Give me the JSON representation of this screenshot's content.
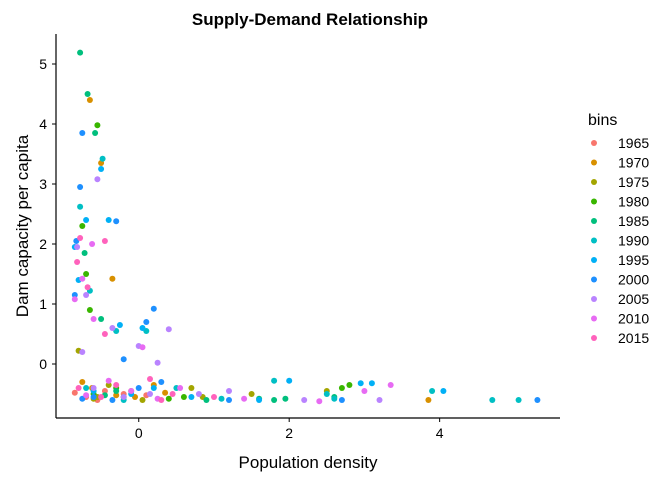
{
  "chart_data": {
    "type": "scatter",
    "title": "Supply-Demand Relationship",
    "xlabel": "Population density",
    "ylabel": "Dam capacity per capita",
    "xlim": [
      -1.1,
      5.6
    ],
    "ylim": [
      -0.9,
      5.5
    ],
    "xticks": [
      0,
      2,
      4
    ],
    "yticks": [
      0,
      1,
      2,
      3,
      4,
      5
    ],
    "grid": false,
    "legend": {
      "title": "bins",
      "position": "right",
      "entries": [
        {
          "label": "1965",
          "color": "#F8766D"
        },
        {
          "label": "1970",
          "color": "#D89000"
        },
        {
          "label": "1975",
          "color": "#A3A500"
        },
        {
          "label": "1980",
          "color": "#39B600"
        },
        {
          "label": "1985",
          "color": "#00BF7D"
        },
        {
          "label": "1990",
          "color": "#00BFC4"
        },
        {
          "label": "1995",
          "color": "#00B0F6"
        },
        {
          "label": "2000",
          "color": "#1E90FF"
        },
        {
          "label": "2005",
          "color": "#B983FF"
        },
        {
          "label": "2010",
          "color": "#E76BF3"
        },
        {
          "label": "2015",
          "color": "#FF62BC"
        }
      ]
    },
    "series": [
      {
        "color": "#F8766D",
        "points": [
          [
            -0.7,
            -0.55
          ],
          [
            -0.45,
            -0.45
          ],
          [
            -0.2,
            -0.5
          ],
          [
            0.1,
            -0.52
          ],
          [
            -0.55,
            -0.6
          ],
          [
            -0.85,
            -0.48
          ]
        ]
      },
      {
        "color": "#D89000",
        "points": [
          [
            -0.65,
            4.4
          ],
          [
            -0.5,
            3.35
          ],
          [
            -0.35,
            1.42
          ],
          [
            -0.62,
            -0.4
          ],
          [
            -0.3,
            -0.52
          ],
          [
            0.2,
            -0.35
          ],
          [
            -0.05,
            -0.55
          ],
          [
            0.35,
            -0.48
          ],
          [
            3.85,
            -0.6
          ],
          [
            -0.75,
            -0.3
          ]
        ]
      },
      {
        "color": "#A3A500",
        "points": [
          [
            -0.8,
            0.22
          ],
          [
            -0.55,
            -0.55
          ],
          [
            -0.1,
            -0.45
          ],
          [
            0.7,
            -0.4
          ],
          [
            1.5,
            -0.5
          ],
          [
            -0.4,
            -0.35
          ],
          [
            0.05,
            -0.6
          ],
          [
            0.85,
            -0.55
          ],
          [
            2.5,
            -0.45
          ],
          [
            -0.6,
            -0.58
          ]
        ]
      },
      {
        "color": "#39B600",
        "points": [
          [
            -0.55,
            3.98
          ],
          [
            -0.75,
            2.3
          ],
          [
            -0.7,
            1.5
          ],
          [
            -0.6,
            -0.5
          ],
          [
            -0.2,
            -0.55
          ],
          [
            0.6,
            -0.55
          ],
          [
            2.7,
            -0.4
          ],
          [
            2.8,
            -0.35
          ],
          [
            -0.3,
            -0.4
          ],
          [
            0.4,
            -0.58
          ],
          [
            -0.65,
            0.9
          ]
        ]
      },
      {
        "color": "#00BF7D",
        "points": [
          [
            -0.78,
            5.19
          ],
          [
            -0.68,
            4.5
          ],
          [
            -0.58,
            3.85
          ],
          [
            -0.72,
            1.85
          ],
          [
            -0.5,
            0.75
          ],
          [
            -0.3,
            -0.45
          ],
          [
            1.6,
            -0.58
          ],
          [
            1.8,
            -0.6
          ],
          [
            1.95,
            -0.58
          ],
          [
            2.6,
            -0.55
          ],
          [
            -0.45,
            -0.52
          ],
          [
            0.9,
            -0.6
          ]
        ]
      },
      {
        "color": "#00BFC4",
        "points": [
          [
            -0.48,
            3.42
          ],
          [
            -0.78,
            2.62
          ],
          [
            -0.65,
            1.22
          ],
          [
            -0.3,
            0.55
          ],
          [
            0.1,
            0.55
          ],
          [
            -0.7,
            -0.4
          ],
          [
            1.8,
            -0.28
          ],
          [
            2.5,
            -0.5
          ],
          [
            2.6,
            -0.58
          ],
          [
            4.7,
            -0.6
          ],
          [
            5.05,
            -0.6
          ],
          [
            3.9,
            -0.45
          ],
          [
            -0.2,
            -0.6
          ],
          [
            0.5,
            -0.4
          ],
          [
            1.1,
            -0.58
          ]
        ]
      },
      {
        "color": "#00B0F6",
        "points": [
          [
            -0.5,
            3.25
          ],
          [
            -0.7,
            2.4
          ],
          [
            -0.85,
            1.95
          ],
          [
            -0.8,
            1.4
          ],
          [
            -0.4,
            2.4
          ],
          [
            -0.25,
            0.65
          ],
          [
            0.05,
            0.6
          ],
          [
            -0.6,
            -0.45
          ],
          [
            0.2,
            -0.4
          ],
          [
            1.6,
            -0.6
          ],
          [
            2.0,
            -0.28
          ],
          [
            2.95,
            -0.32
          ],
          [
            3.1,
            -0.32
          ],
          [
            4.05,
            -0.45
          ],
          [
            -0.1,
            -0.5
          ],
          [
            0.7,
            -0.55
          ]
        ]
      },
      {
        "color": "#1E90FF",
        "points": [
          [
            -0.75,
            3.85
          ],
          [
            -0.78,
            2.95
          ],
          [
            -0.83,
            2.05
          ],
          [
            -0.85,
            1.15
          ],
          [
            -0.3,
            2.38
          ],
          [
            0.2,
            0.92
          ],
          [
            0.1,
            0.7
          ],
          [
            -0.6,
            -0.55
          ],
          [
            -0.35,
            -0.6
          ],
          [
            0.0,
            -0.4
          ],
          [
            2.7,
            -0.6
          ],
          [
            5.3,
            -0.6
          ],
          [
            -0.75,
            -0.58
          ],
          [
            0.3,
            -0.3
          ],
          [
            1.2,
            -0.6
          ],
          [
            -0.2,
            0.08
          ]
        ]
      },
      {
        "color": "#B983FF",
        "points": [
          [
            -0.55,
            3.08
          ],
          [
            -0.82,
            1.95
          ],
          [
            -0.7,
            1.15
          ],
          [
            -0.35,
            0.6
          ],
          [
            0.4,
            0.58
          ],
          [
            0.0,
            0.3
          ],
          [
            -0.6,
            -0.4
          ],
          [
            0.15,
            -0.5
          ],
          [
            1.2,
            -0.45
          ],
          [
            2.2,
            -0.6
          ],
          [
            3.2,
            -0.6
          ],
          [
            -0.2,
            -0.55
          ],
          [
            0.8,
            -0.5
          ],
          [
            -0.75,
            0.2
          ],
          [
            0.25,
            0.02
          ]
        ]
      },
      {
        "color": "#E76BF3",
        "points": [
          [
            -0.62,
            2.0
          ],
          [
            -0.75,
            1.42
          ],
          [
            -0.85,
            1.08
          ],
          [
            -0.6,
            0.75
          ],
          [
            -0.4,
            -0.28
          ],
          [
            0.05,
            0.28
          ],
          [
            -0.1,
            -0.45
          ],
          [
            0.25,
            -0.58
          ],
          [
            2.4,
            -0.62
          ],
          [
            3.0,
            -0.45
          ],
          [
            3.35,
            -0.35
          ],
          [
            -0.7,
            -0.52
          ],
          [
            0.55,
            -0.4
          ],
          [
            1.4,
            -0.58
          ]
        ]
      },
      {
        "color": "#FF62BC",
        "points": [
          [
            -0.45,
            2.05
          ],
          [
            -0.78,
            2.1
          ],
          [
            -0.82,
            1.7
          ],
          [
            -0.68,
            1.28
          ],
          [
            -0.45,
            0.5
          ],
          [
            -0.5,
            -0.55
          ],
          [
            0.15,
            -0.25
          ],
          [
            -0.3,
            -0.35
          ],
          [
            0.3,
            -0.6
          ],
          [
            -0.8,
            -0.4
          ],
          [
            0.45,
            -0.5
          ],
          [
            1.0,
            -0.55
          ]
        ]
      }
    ]
  }
}
